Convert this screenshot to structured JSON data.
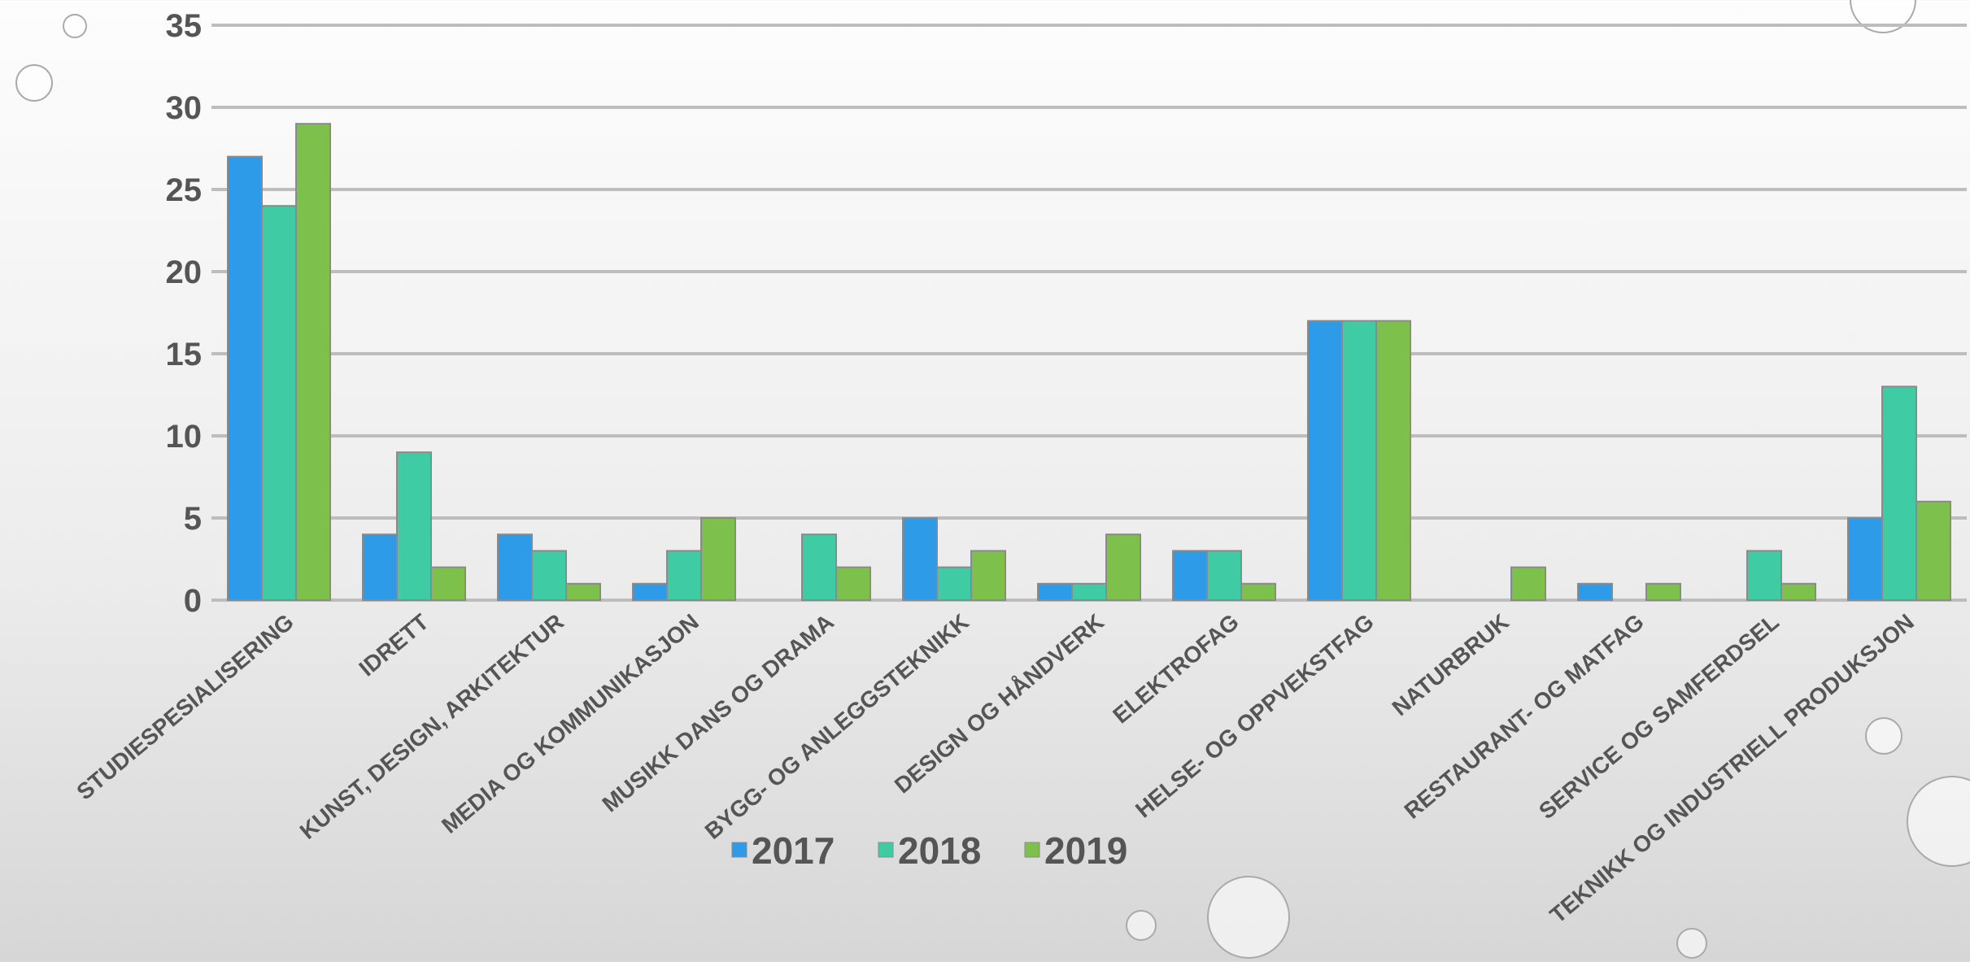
{
  "chart_data": {
    "type": "bar",
    "categories": [
      "STUDIESPESIALISERING",
      "IDRETT",
      "KUNST, DESIGN, ARKITEKTUR",
      "MEDIA OG KOMMUNIKASJON",
      "MUSIKK DANS OG DRAMA",
      "BYGG- OG ANLEGGSTEKNIKK",
      "DESIGN OG HÅNDVERK",
      "ELEKTROFAG",
      "HELSE- OG OPPVEKSTFAG",
      "NATURBRUK",
      "RESTAURANT- OG MATFAG",
      "SERVICE OG SAMFERDSEL",
      "TEKNIKK OG INDUSTRIELL PRODUKSJON"
    ],
    "series": [
      {
        "name": "2017",
        "color": "#2e9be8",
        "values": [
          27,
          4,
          4,
          1,
          0,
          5,
          1,
          3,
          17,
          0,
          1,
          0,
          5
        ]
      },
      {
        "name": "2018",
        "color": "#3fcca5",
        "values": [
          24,
          9,
          3,
          3,
          4,
          2,
          1,
          3,
          17,
          0,
          0,
          3,
          13
        ]
      },
      {
        "name": "2019",
        "color": "#7dc14c",
        "values": [
          29,
          2,
          1,
          5,
          2,
          3,
          4,
          1,
          17,
          2,
          1,
          1,
          6
        ]
      }
    ],
    "ylim": [
      0,
      35
    ],
    "yticks": [
      0,
      5,
      10,
      15,
      20,
      25,
      30,
      35
    ],
    "grid": true,
    "legend": "bottom"
  }
}
